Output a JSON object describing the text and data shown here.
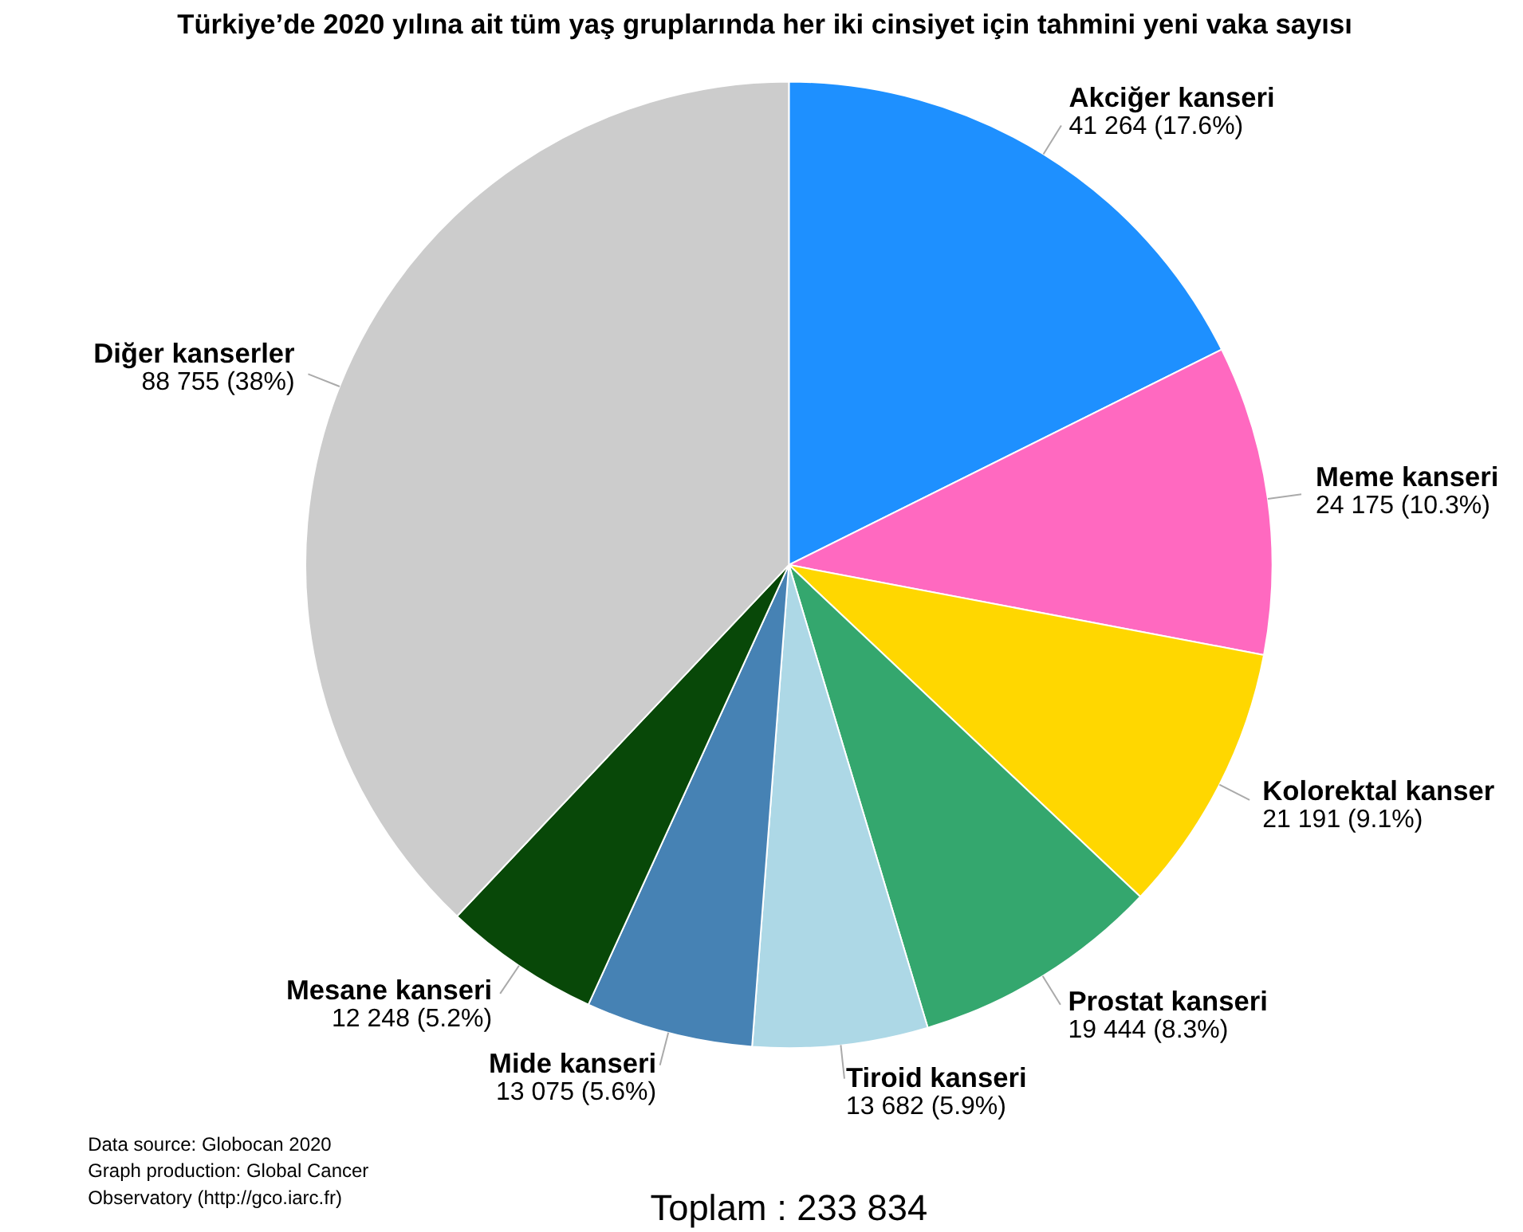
{
  "chart_data": {
    "type": "pie",
    "title": "Türkiye’de 2020 yılına ait tüm yaş gruplarında her iki cinsiyet için tahmini yeni vaka sayısı",
    "categories": [
      "Akciğer kanseri",
      "Meme kanseri",
      "Kolorektal kanser",
      "Prostat kanseri",
      "Tiroid kanseri",
      "Mide kanseri",
      "Mesane kanseri",
      "Diğer kanserler"
    ],
    "values": [
      41264,
      24175,
      21191,
      19444,
      13682,
      13075,
      12248,
      88755
    ],
    "value_labels": [
      "41 264 (17.6%)",
      "24 175 (10.3%)",
      "21 191 (9.1%)",
      "19 444 (8.3%)",
      "13 682 (5.9%)",
      "13 075 (5.6%)",
      "12 248 (5.2%)",
      "88 755 (38%)"
    ],
    "colors": [
      "#1e90ff",
      "#ff69c0",
      "#ffd700",
      "#34a76e",
      "#add8e6",
      "#4682b4",
      "#084808",
      "#cccccc"
    ],
    "annotations": [
      "Toplam : 233 834",
      "Data source: Globocan 2020",
      "Graph production: Global Cancer",
      "Observatory (http://gco.iarc.fr)"
    ]
  }
}
